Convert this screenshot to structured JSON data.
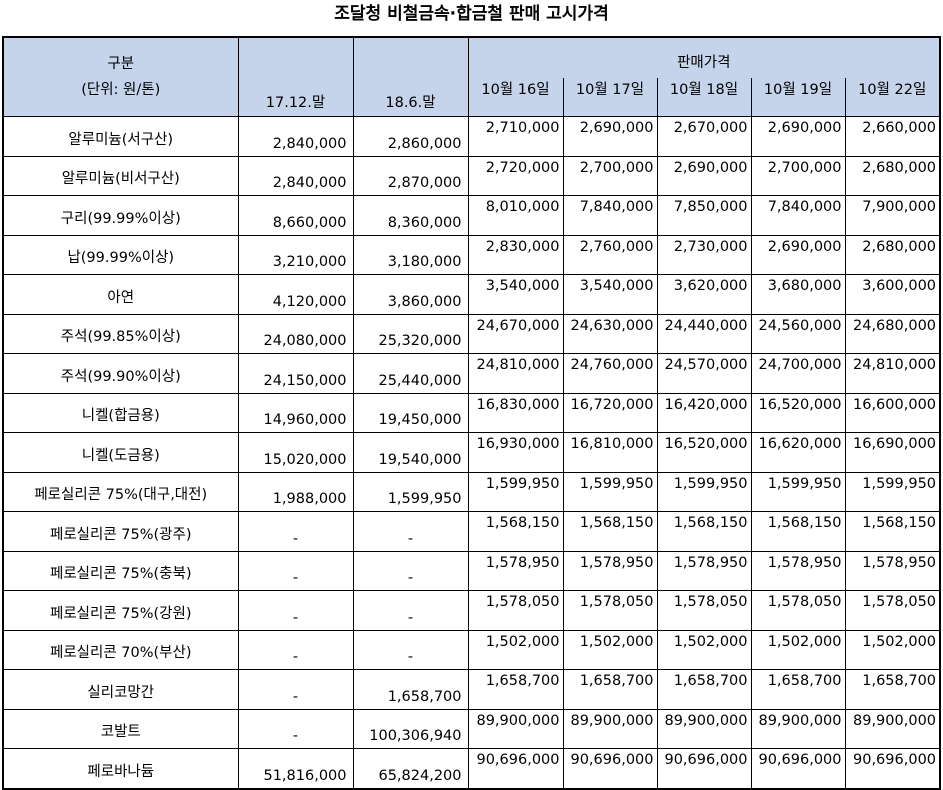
{
  "title": "조달청 비철금속·합금철 판매 고시가격",
  "header": {
    "category_label": "구분",
    "unit_label": "(단위: 원/톤)",
    "price_group_label": "판매가격",
    "columns": [
      "17.12.말",
      "18.6.말",
      "10월 16일",
      "10월 17일",
      "10월 18일",
      "10월 19일",
      "10월 22일"
    ]
  },
  "rows": [
    {
      "name": "알루미늄(서구산)",
      "values": [
        "2,840,000",
        "2,860,000",
        "2,710,000",
        "2,690,000",
        "2,670,000",
        "2,690,000",
        "2,660,000"
      ]
    },
    {
      "name": "알루미늄(비서구산)",
      "values": [
        "2,840,000",
        "2,870,000",
        "2,720,000",
        "2,700,000",
        "2,690,000",
        "2,700,000",
        "2,680,000"
      ]
    },
    {
      "name": "구리(99.99%이상)",
      "values": [
        "8,660,000",
        "8,360,000",
        "8,010,000",
        "7,840,000",
        "7,850,000",
        "7,840,000",
        "7,900,000"
      ]
    },
    {
      "name": "납(99.99%이상)",
      "values": [
        "3,210,000",
        "3,180,000",
        "2,830,000",
        "2,760,000",
        "2,730,000",
        "2,690,000",
        "2,680,000"
      ]
    },
    {
      "name": "아연",
      "values": [
        "4,120,000",
        "3,860,000",
        "3,540,000",
        "3,540,000",
        "3,620,000",
        "3,680,000",
        "3,600,000"
      ]
    },
    {
      "name": "주석(99.85%이상)",
      "values": [
        "24,080,000",
        "25,320,000",
        "24,670,000",
        "24,630,000",
        "24,440,000",
        "24,560,000",
        "24,680,000"
      ]
    },
    {
      "name": "주석(99.90%이상)",
      "values": [
        "24,150,000",
        "25,440,000",
        "24,810,000",
        "24,760,000",
        "24,570,000",
        "24,700,000",
        "24,810,000"
      ]
    },
    {
      "name": "니켈(합금용)",
      "values": [
        "14,960,000",
        "19,450,000",
        "16,830,000",
        "16,720,000",
        "16,420,000",
        "16,520,000",
        "16,600,000"
      ]
    },
    {
      "name": "니켈(도금용)",
      "values": [
        "15,020,000",
        "19,540,000",
        "16,930,000",
        "16,810,000",
        "16,520,000",
        "16,620,000",
        "16,690,000"
      ]
    },
    {
      "name": "페로실리콘 75%(대구,대전)",
      "values": [
        "1,988,000",
        "1,599,950",
        "1,599,950",
        "1,599,950",
        "1,599,950",
        "1,599,950",
        "1,599,950"
      ]
    },
    {
      "name": "페로실리콘 75%(광주)",
      "values": [
        "-",
        "-",
        "1,568,150",
        "1,568,150",
        "1,568,150",
        "1,568,150",
        "1,568,150"
      ]
    },
    {
      "name": "페로실리콘 75%(충북)",
      "values": [
        "-",
        "-",
        "1,578,950",
        "1,578,950",
        "1,578,950",
        "1,578,950",
        "1,578,950"
      ]
    },
    {
      "name": "페로실리콘 75%(강원)",
      "values": [
        "-",
        "-",
        "1,578,050",
        "1,578,050",
        "1,578,050",
        "1,578,050",
        "1,578,050"
      ]
    },
    {
      "name": "페로실리콘 70%(부산)",
      "values": [
        "-",
        "-",
        "1,502,000",
        "1,502,000",
        "1,502,000",
        "1,502,000",
        "1,502,000"
      ]
    },
    {
      "name": "실리코망간",
      "values": [
        "-",
        "1,658,700",
        "1,658,700",
        "1,658,700",
        "1,658,700",
        "1,658,700",
        "1,658,700"
      ]
    },
    {
      "name": "코발트",
      "values": [
        "-",
        "100,306,940",
        "89,900,000",
        "89,900,000",
        "89,900,000",
        "89,900,000",
        "89,900,000"
      ]
    },
    {
      "name": "페로바나듐",
      "values": [
        "51,816,000",
        "65,824,200",
        "90,696,000",
        "90,696,000",
        "90,696,000",
        "90,696,000",
        "90,696,000"
      ]
    }
  ]
}
